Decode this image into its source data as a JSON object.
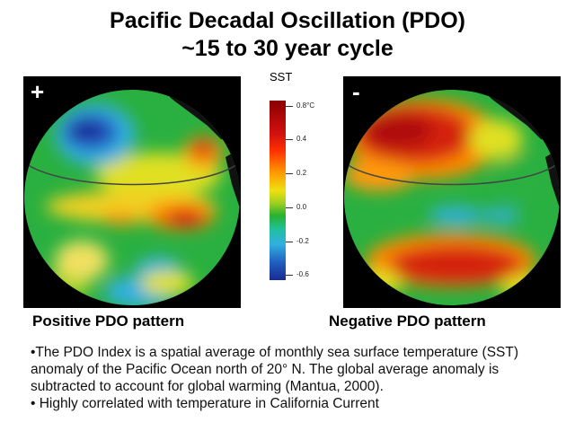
{
  "title": {
    "line1": "Pacific Decadal Oscillation (PDO)",
    "line2": "~15 to 30 year cycle"
  },
  "colorbar": {
    "label": "SST",
    "ticks": [
      "0.8°C",
      "0.4",
      "0.2",
      "0.0",
      "-0.2",
      "-0.6"
    ]
  },
  "panels": {
    "positive": {
      "sign": "+",
      "caption": "Positive PDO pattern"
    },
    "negative": {
      "sign": "-",
      "caption": "Negative PDO pattern"
    }
  },
  "notes": [
    "•The PDO Index is a spatial average of monthly sea surface temperature (SST) anomaly of the Pacific Ocean north of 20° N. The global average anomaly is subtracted to account for global warming (Mantua, 2000).",
    "• Highly correlated with temperature in California Current"
  ],
  "colors": {
    "land": "#111111",
    "warm": "#d42010",
    "cool": "#2850c8",
    "neutral": "#2ab040"
  }
}
